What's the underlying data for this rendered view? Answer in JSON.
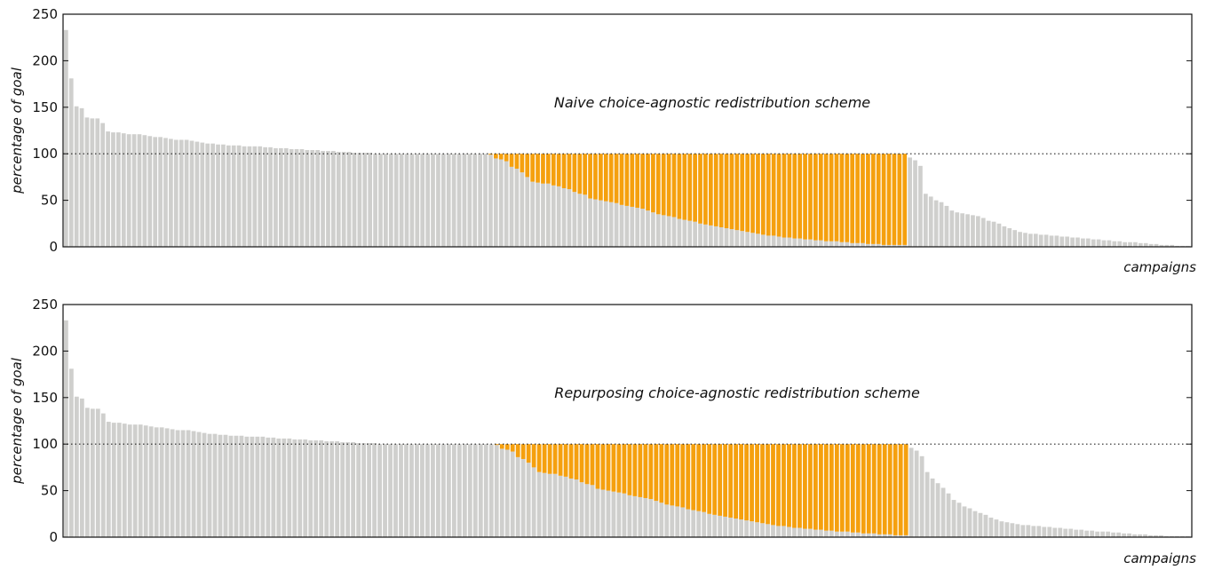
{
  "chart_data": [
    {
      "type": "bar",
      "title": "",
      "annotation": "Naive choice-agnostic redistribution scheme",
      "xlabel": "campaigns",
      "ylabel": "percentage of goal",
      "ylim": [
        0,
        250
      ],
      "yticks": [
        "0",
        "50",
        "100",
        "150",
        "200",
        "250"
      ],
      "goal_line": 100,
      "colors": {
        "original": "#cfcfcd",
        "added": "#f5a00e",
        "reduced": "#3b6591"
      },
      "original_values": [
        233,
        181,
        151,
        149,
        139,
        138,
        138,
        133,
        124,
        123,
        123,
        122,
        121,
        121,
        121,
        120,
        119,
        118,
        118,
        117,
        116,
        115,
        115,
        115,
        114,
        113,
        112,
        111,
        111,
        110,
        110,
        109,
        109,
        109,
        108,
        108,
        108,
        108,
        107,
        107,
        106,
        106,
        106,
        105,
        105,
        105,
        104,
        104,
        104,
        103,
        103,
        103,
        102,
        102,
        102,
        101,
        101,
        101,
        101,
        100,
        100,
        100,
        100,
        100,
        100,
        100,
        100,
        100,
        100,
        100,
        100,
        100,
        100,
        100,
        100,
        100,
        100,
        100,
        100,
        100,
        100,
        99,
        95,
        94,
        92,
        86,
        84,
        80,
        75,
        70,
        69,
        68,
        68,
        66,
        65,
        63,
        62,
        59,
        57,
        56,
        52,
        51,
        50,
        49,
        48,
        47,
        45,
        44,
        43,
        42,
        41,
        39,
        37,
        35,
        34,
        33,
        32,
        30,
        29,
        28,
        27,
        25,
        24,
        23,
        22,
        21,
        20,
        19,
        18,
        17,
        16,
        15,
        14,
        13,
        12,
        12,
        11,
        10,
        10,
        9,
        9,
        8,
        8,
        7,
        7,
        6,
        6,
        6,
        5,
        5,
        4,
        4,
        4,
        3,
        3,
        3,
        2,
        2,
        2,
        2,
        2,
        96,
        93,
        87,
        57,
        54,
        50,
        48,
        44,
        39,
        37,
        36,
        35,
        34,
        33,
        31,
        28,
        27,
        25,
        22,
        20,
        18,
        16,
        15,
        14,
        14,
        13,
        13,
        12,
        12,
        11,
        11,
        10,
        10,
        9,
        9,
        8,
        8,
        7,
        7,
        6,
        6,
        5,
        5,
        5,
        4,
        4,
        3,
        3,
        2,
        2,
        2,
        1,
        1,
        1
      ],
      "final_values": [
        233,
        181,
        151,
        149,
        139,
        138,
        138,
        133,
        124,
        123,
        123,
        122,
        121,
        121,
        121,
        120,
        119,
        118,
        118,
        117,
        116,
        115,
        115,
        115,
        114,
        113,
        112,
        111,
        111,
        110,
        110,
        109,
        109,
        109,
        108,
        108,
        108,
        108,
        107,
        107,
        106,
        106,
        106,
        105,
        105,
        105,
        104,
        104,
        104,
        103,
        103,
        103,
        102,
        102,
        102,
        101,
        101,
        101,
        101,
        100,
        100,
        100,
        100,
        100,
        100,
        100,
        100,
        100,
        100,
        100,
        100,
        100,
        100,
        100,
        100,
        100,
        100,
        100,
        100,
        100,
        100,
        100,
        100,
        100,
        100,
        100,
        100,
        100,
        100,
        100,
        100,
        100,
        100,
        100,
        100,
        100,
        100,
        100,
        100,
        100,
        100,
        100,
        100,
        100,
        100,
        100,
        100,
        100,
        100,
        100,
        100,
        100,
        100,
        100,
        100,
        100,
        100,
        100,
        100,
        100,
        100,
        100,
        100,
        100,
        100,
        100,
        100,
        100,
        100,
        100,
        100,
        100,
        100,
        100,
        100,
        100,
        100,
        100,
        100,
        100,
        100,
        100,
        100,
        100,
        100,
        100,
        100,
        100,
        100,
        100,
        100,
        100,
        100,
        100,
        100,
        100,
        100,
        100,
        100,
        100,
        100,
        96,
        93,
        87,
        57,
        54,
        50,
        48,
        44,
        39,
        37,
        36,
        35,
        34,
        33,
        31,
        28,
        27,
        25,
        22,
        20,
        18,
        16,
        15,
        14,
        14,
        13,
        13,
        12,
        12,
        11,
        11,
        10,
        10,
        9,
        9,
        8,
        8,
        7,
        7,
        6,
        6,
        5,
        5,
        5,
        4,
        4,
        3,
        3,
        2,
        2,
        2,
        1,
        1,
        1
      ]
    },
    {
      "type": "bar",
      "title": "",
      "annotation": "Repurposing choice-agnostic redistribution scheme",
      "xlabel": "campaigns",
      "ylabel": "percentage of goal",
      "ylim": [
        0,
        250
      ],
      "yticks": [
        "0",
        "50",
        "100",
        "150",
        "200",
        "250"
      ],
      "goal_line": 100,
      "colors": {
        "original": "#cfcfcd",
        "added": "#f5a00e",
        "reduced": "#3b6591"
      },
      "original_values": [
        233,
        181,
        151,
        149,
        139,
        138,
        138,
        133,
        124,
        123,
        123,
        122,
        121,
        121,
        121,
        120,
        119,
        118,
        118,
        117,
        116,
        115,
        115,
        115,
        114,
        113,
        112,
        111,
        111,
        110,
        110,
        109,
        109,
        109,
        108,
        108,
        108,
        108,
        107,
        107,
        106,
        106,
        106,
        105,
        105,
        105,
        104,
        104,
        104,
        103,
        103,
        103,
        102,
        102,
        102,
        101,
        101,
        101,
        101,
        100,
        100,
        100,
        100,
        100,
        100,
        100,
        100,
        100,
        100,
        100,
        100,
        100,
        100,
        100,
        100,
        100,
        100,
        100,
        100,
        100,
        100,
        99,
        95,
        94,
        92,
        86,
        84,
        80,
        75,
        70,
        69,
        68,
        68,
        66,
        65,
        63,
        62,
        59,
        57,
        56,
        52,
        51,
        50,
        49,
        48,
        47,
        45,
        44,
        43,
        42,
        41,
        39,
        37,
        35,
        34,
        33,
        32,
        30,
        29,
        28,
        27,
        25,
        24,
        23,
        22,
        21,
        20,
        19,
        18,
        17,
        16,
        15,
        14,
        13,
        12,
        12,
        11,
        10,
        10,
        9,
        9,
        8,
        8,
        7,
        7,
        6,
        6,
        6,
        5,
        5,
        4,
        4,
        4,
        3,
        3,
        3,
        2,
        2,
        2,
        96,
        93,
        87,
        70,
        63,
        58,
        53,
        47,
        40,
        37,
        33,
        31,
        28,
        26,
        24,
        21,
        19,
        17,
        16,
        15,
        14,
        13,
        13,
        12,
        12,
        11,
        11,
        10,
        10,
        9,
        9,
        8,
        8,
        7,
        7,
        6,
        6,
        6,
        5,
        5,
        4,
        4,
        3,
        3,
        3,
        2,
        2,
        2,
        1,
        1,
        1,
        1,
        1
      ],
      "final_values": [
        233,
        181,
        151,
        149,
        139,
        138,
        138,
        133,
        124,
        123,
        123,
        122,
        121,
        121,
        121,
        120,
        119,
        118,
        118,
        117,
        116,
        115,
        115,
        115,
        114,
        113,
        112,
        111,
        111,
        110,
        110,
        109,
        109,
        109,
        108,
        108,
        108,
        108,
        107,
        107,
        106,
        106,
        106,
        105,
        105,
        105,
        104,
        104,
        104,
        103,
        103,
        103,
        102,
        102,
        102,
        101,
        101,
        101,
        101,
        100,
        100,
        100,
        100,
        100,
        100,
        100,
        100,
        100,
        100,
        100,
        100,
        100,
        100,
        100,
        100,
        100,
        100,
        100,
        100,
        100,
        100,
        100,
        100,
        100,
        100,
        100,
        100,
        100,
        100,
        100,
        100,
        100,
        100,
        100,
        100,
        100,
        100,
        100,
        100,
        100,
        100,
        100,
        100,
        100,
        100,
        100,
        100,
        100,
        100,
        100,
        100,
        100,
        100,
        100,
        100,
        100,
        100,
        100,
        100,
        100,
        100,
        100,
        100,
        100,
        100,
        100,
        100,
        100,
        100,
        100,
        100,
        100,
        100,
        100,
        100,
        100,
        100,
        100,
        100,
        100,
        100,
        100,
        100,
        100,
        100,
        100,
        100,
        100,
        100,
        100,
        100,
        100,
        100,
        100,
        100,
        100,
        100,
        100,
        100,
        96,
        93,
        87,
        70,
        63,
        58,
        53,
        47,
        40,
        37,
        33,
        31,
        28,
        26,
        24,
        21,
        19,
        17,
        16,
        15,
        14,
        13,
        13,
        12,
        12,
        11,
        11,
        10,
        10,
        9,
        9,
        8,
        8,
        7,
        7,
        6,
        6,
        6,
        5,
        5,
        4,
        4,
        3,
        3,
        3,
        2,
        2,
        2,
        1,
        1,
        1,
        1,
        1
      ]
    }
  ]
}
